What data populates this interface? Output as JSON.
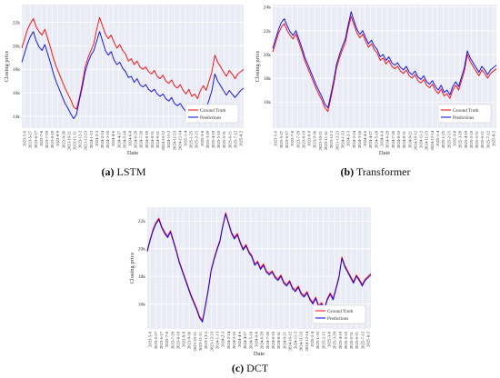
{
  "chart_data": [
    {
      "type": "line",
      "panel": "a",
      "caption_letter": "(a)",
      "caption_name": "LSTM",
      "xlabel": "Date",
      "ylabel": "Closing price",
      "ylim": [
        13000,
        23500
      ],
      "yticks": [
        14000,
        16000,
        18000,
        20000,
        22000
      ],
      "ytick_labels": [
        "14k",
        "16k",
        "18k",
        "20k",
        "22k"
      ],
      "xtick_labels": [
        "2023-5-6",
        "2023-5-27",
        "2023-6-17",
        "2023-7-8",
        "2023-7-29",
        "2023-8-19",
        "2023-9-9",
        "2023-9-30",
        "2023-10-21",
        "2023-11-11",
        "2023-12-2",
        "2023-12-23",
        "2024-1-13",
        "2024-2-3",
        "2024-2-24",
        "2024-3-16",
        "2024-4-6",
        "2024-4-27",
        "2024-5-18",
        "2024-6-8",
        "2024-6-29",
        "2024-7-20",
        "2024-8-10",
        "2024-8-31",
        "2024-9-21",
        "2024-10-12",
        "2024-11-2",
        "2024-11-23",
        "2024-12-14",
        "2025-1-4",
        "2025-1-25",
        "2025-2-15",
        "2025-3-8",
        "2025-3-29",
        "2025-4-19",
        "2025-5-10",
        "2025-5-31",
        "2025-6-21",
        "2025-7-12",
        "2025-8-2"
      ],
      "legend_position": "lower-right",
      "grid": true,
      "series": [
        {
          "name": "Ground Truth",
          "color": "#ff0000",
          "values": [
            19800,
            20600,
            21400,
            21900,
            22300,
            21600,
            21200,
            20900,
            21400,
            20600,
            19800,
            18900,
            18200,
            17600,
            17000,
            16400,
            15900,
            15400,
            14800,
            14600,
            15600,
            16800,
            18200,
            19000,
            19600,
            20200,
            21400,
            22400,
            21700,
            21000,
            20600,
            20900,
            20300,
            19800,
            20100,
            19600,
            19300,
            18700,
            18900,
            18400,
            18700,
            18200,
            18000,
            18200,
            17800,
            17600,
            17900,
            17400,
            17200,
            17500,
            17000,
            16800,
            17100,
            16600,
            16400,
            16700,
            16200,
            15900,
            16300,
            15700,
            15900,
            15500,
            16200,
            16600,
            16200,
            17000,
            17800,
            19200,
            18600,
            18200,
            17800,
            17400,
            17900,
            17600,
            17200,
            17600,
            17800,
            18000
          ]
        },
        {
          "name": "Predictions",
          "color": "#0000ff",
          "values": [
            18600,
            19400,
            20200,
            20800,
            21200,
            20400,
            19900,
            19600,
            20100,
            19300,
            18500,
            17600,
            16900,
            16300,
            15700,
            15100,
            14700,
            14200,
            13800,
            14200,
            15400,
            16500,
            17800,
            18600,
            19200,
            19600,
            20400,
            21200,
            20400,
            19600,
            19200,
            19500,
            18800,
            18400,
            18600,
            18100,
            17800,
            17300,
            17400,
            16900,
            17200,
            16700,
            16500,
            16700,
            16300,
            16100,
            16300,
            15900,
            15700,
            15900,
            15500,
            15300,
            15600,
            15100,
            14900,
            15100,
            14700,
            14400,
            14700,
            14200,
            14400,
            14000,
            14600,
            15000,
            14700,
            15400,
            16200,
            17600,
            17000,
            16600,
            16200,
            15800,
            16200,
            15900,
            15600,
            15900,
            16200,
            16400
          ]
        }
      ]
    },
    {
      "type": "line",
      "panel": "b",
      "caption_letter": "(b)",
      "caption_name": "Transformer",
      "xlabel": "Date",
      "ylabel": "Closing price",
      "ylim": [
        13800,
        24200
      ],
      "yticks": [
        16000,
        18000,
        20000,
        22000,
        24000
      ],
      "ytick_labels": [
        "16k",
        "18k",
        "20k",
        "22k",
        "24k"
      ],
      "xtick_labels": [
        "2023-5-6",
        "2023-5-27",
        "2023-6-17",
        "2023-7-8",
        "2023-7-29",
        "2023-8-19",
        "2023-9-9",
        "2023-9-30",
        "2023-10-21",
        "2023-11-11",
        "2023-12-2",
        "2023-12-23",
        "2024-1-13",
        "2024-2-3",
        "2024-2-24",
        "2024-3-16",
        "2024-4-6",
        "2024-4-27",
        "2024-5-18",
        "2024-6-8",
        "2024-6-29",
        "2024-7-20",
        "2024-8-10",
        "2024-8-31",
        "2024-9-21",
        "2024-10-12",
        "2024-11-2",
        "2024-11-23",
        "2024-12-14",
        "2025-1-4",
        "2025-1-25",
        "2025-2-15",
        "2025-3-8",
        "2025-3-29",
        "2025-4-19",
        "2025-5-10",
        "2025-5-31",
        "2025-6-21",
        "2025-7-12",
        "2025-8-2"
      ],
      "legend_position": "lower-right",
      "grid": true,
      "series": [
        {
          "name": "Ground Truth",
          "color": "#ff0000",
          "values": [
            20200,
            21000,
            21800,
            22300,
            22600,
            22000,
            21600,
            21300,
            21700,
            21000,
            20300,
            19500,
            18900,
            18300,
            17700,
            17100,
            16600,
            16100,
            15500,
            15200,
            16300,
            17500,
            18900,
            19700,
            20400,
            21000,
            22200,
            23200,
            22500,
            21800,
            21400,
            21700,
            21100,
            20600,
            20900,
            20400,
            20100,
            19500,
            19700,
            19200,
            19500,
            19000,
            18800,
            19000,
            18600,
            18400,
            18700,
            18200,
            18000,
            18300,
            17800,
            17600,
            17900,
            17400,
            17200,
            17500,
            17000,
            16700,
            17100,
            16500,
            16700,
            16300,
            17000,
            17400,
            17000,
            17800,
            18600,
            20000,
            19400,
            19000,
            18600,
            18200,
            18700,
            18400,
            18000,
            18400,
            18600,
            18800
          ]
        },
        {
          "name": "Predictions",
          "color": "#0000ff",
          "values": [
            20500,
            21300,
            22100,
            22700,
            23000,
            22400,
            21900,
            21600,
            22000,
            21300,
            20600,
            19800,
            19200,
            18600,
            18000,
            17400,
            16900,
            16400,
            15800,
            15500,
            16600,
            17800,
            19200,
            20000,
            20700,
            21300,
            22500,
            23600,
            22800,
            22100,
            21700,
            22000,
            21400,
            20900,
            21200,
            20700,
            20400,
            19800,
            20000,
            19500,
            19800,
            19300,
            19100,
            19300,
            18900,
            18700,
            19000,
            18500,
            18300,
            18600,
            18100,
            17900,
            18200,
            17700,
            17500,
            17800,
            17300,
            17000,
            17400,
            16800,
            17000,
            16600,
            17300,
            17700,
            17300,
            18100,
            18900,
            20300,
            19700,
            19300,
            18900,
            18500,
            19000,
            18700,
            18300,
            18700,
            18900,
            19100
          ]
        }
      ]
    },
    {
      "type": "line",
      "panel": "c",
      "caption_letter": "(c)",
      "caption_name": "DCT",
      "xlabel": "Date",
      "ylabel": "Closing price",
      "ylim": [
        14200,
        23000
      ],
      "yticks": [
        16000,
        18000,
        20000,
        22000
      ],
      "ytick_labels": [
        "16k",
        "18k",
        "20k",
        "22k"
      ],
      "xtick_labels": [
        "2023-5-6",
        "2023-5-27",
        "2023-6-17",
        "2023-7-8",
        "2023-7-29",
        "2023-8-19",
        "2023-9-9",
        "2023-9-30",
        "2023-10-21",
        "2023-11-11",
        "2023-12-2",
        "2023-12-23",
        "2024-1-13",
        "2024-2-3",
        "2024-2-24",
        "2024-3-16",
        "2024-4-6",
        "2024-4-27",
        "2024-5-18",
        "2024-6-8",
        "2024-6-29",
        "2024-7-20",
        "2024-8-10",
        "2024-8-31",
        "2024-9-21",
        "2024-10-12",
        "2024-11-2",
        "2024-11-23",
        "2024-12-14",
        "2025-1-4",
        "2025-1-25",
        "2025-2-15",
        "2025-3-8",
        "2025-3-29",
        "2025-4-19",
        "2025-5-10",
        "2025-5-31",
        "2025-6-21",
        "2025-7-12",
        "2025-8-2"
      ],
      "legend_position": "lower-right",
      "grid": true,
      "series": [
        {
          "name": "Ground Truth",
          "color": "#ff0000",
          "values": [
            19900,
            20700,
            21400,
            21900,
            22200,
            21600,
            21200,
            20900,
            21300,
            20600,
            19900,
            19100,
            18500,
            17900,
            17300,
            16700,
            16200,
            15700,
            15100,
            14800,
            15900,
            17100,
            18500,
            19300,
            20000,
            20600,
            21700,
            22600,
            21900,
            21200,
            20800,
            21100,
            20500,
            20000,
            20300,
            19800,
            19500,
            18900,
            19100,
            18600,
            18900,
            18400,
            18200,
            18400,
            18000,
            17800,
            18100,
            17600,
            17400,
            17700,
            17200,
            17000,
            17300,
            16800,
            16600,
            16900,
            16400,
            16100,
            16500,
            15900,
            16100,
            15700,
            16400,
            16800,
            16400,
            17200,
            18000,
            19400,
            18800,
            18400,
            18000,
            17600,
            18100,
            17800,
            17400,
            17800,
            18000,
            18200
          ]
        },
        {
          "name": "Predictions",
          "color": "#0000ff",
          "values": [
            19800,
            20600,
            21300,
            21800,
            22100,
            21500,
            21100,
            20800,
            21200,
            20500,
            19800,
            19000,
            18400,
            17800,
            17200,
            16600,
            16100,
            15600,
            15000,
            14700,
            15800,
            17000,
            18400,
            19200,
            19900,
            20500,
            21600,
            22500,
            21800,
            21100,
            20700,
            21000,
            20400,
            19900,
            20200,
            19700,
            19400,
            18800,
            19000,
            18500,
            18800,
            18300,
            18100,
            18300,
            17900,
            17700,
            18000,
            17500,
            17300,
            17600,
            17100,
            16900,
            17200,
            16700,
            16500,
            16800,
            16300,
            16000,
            16400,
            15800,
            16000,
            15600,
            16300,
            16700,
            16300,
            17100,
            17900,
            19300,
            18700,
            18300,
            17900,
            17500,
            18000,
            17700,
            17300,
            17700,
            17900,
            18100
          ]
        }
      ]
    }
  ]
}
